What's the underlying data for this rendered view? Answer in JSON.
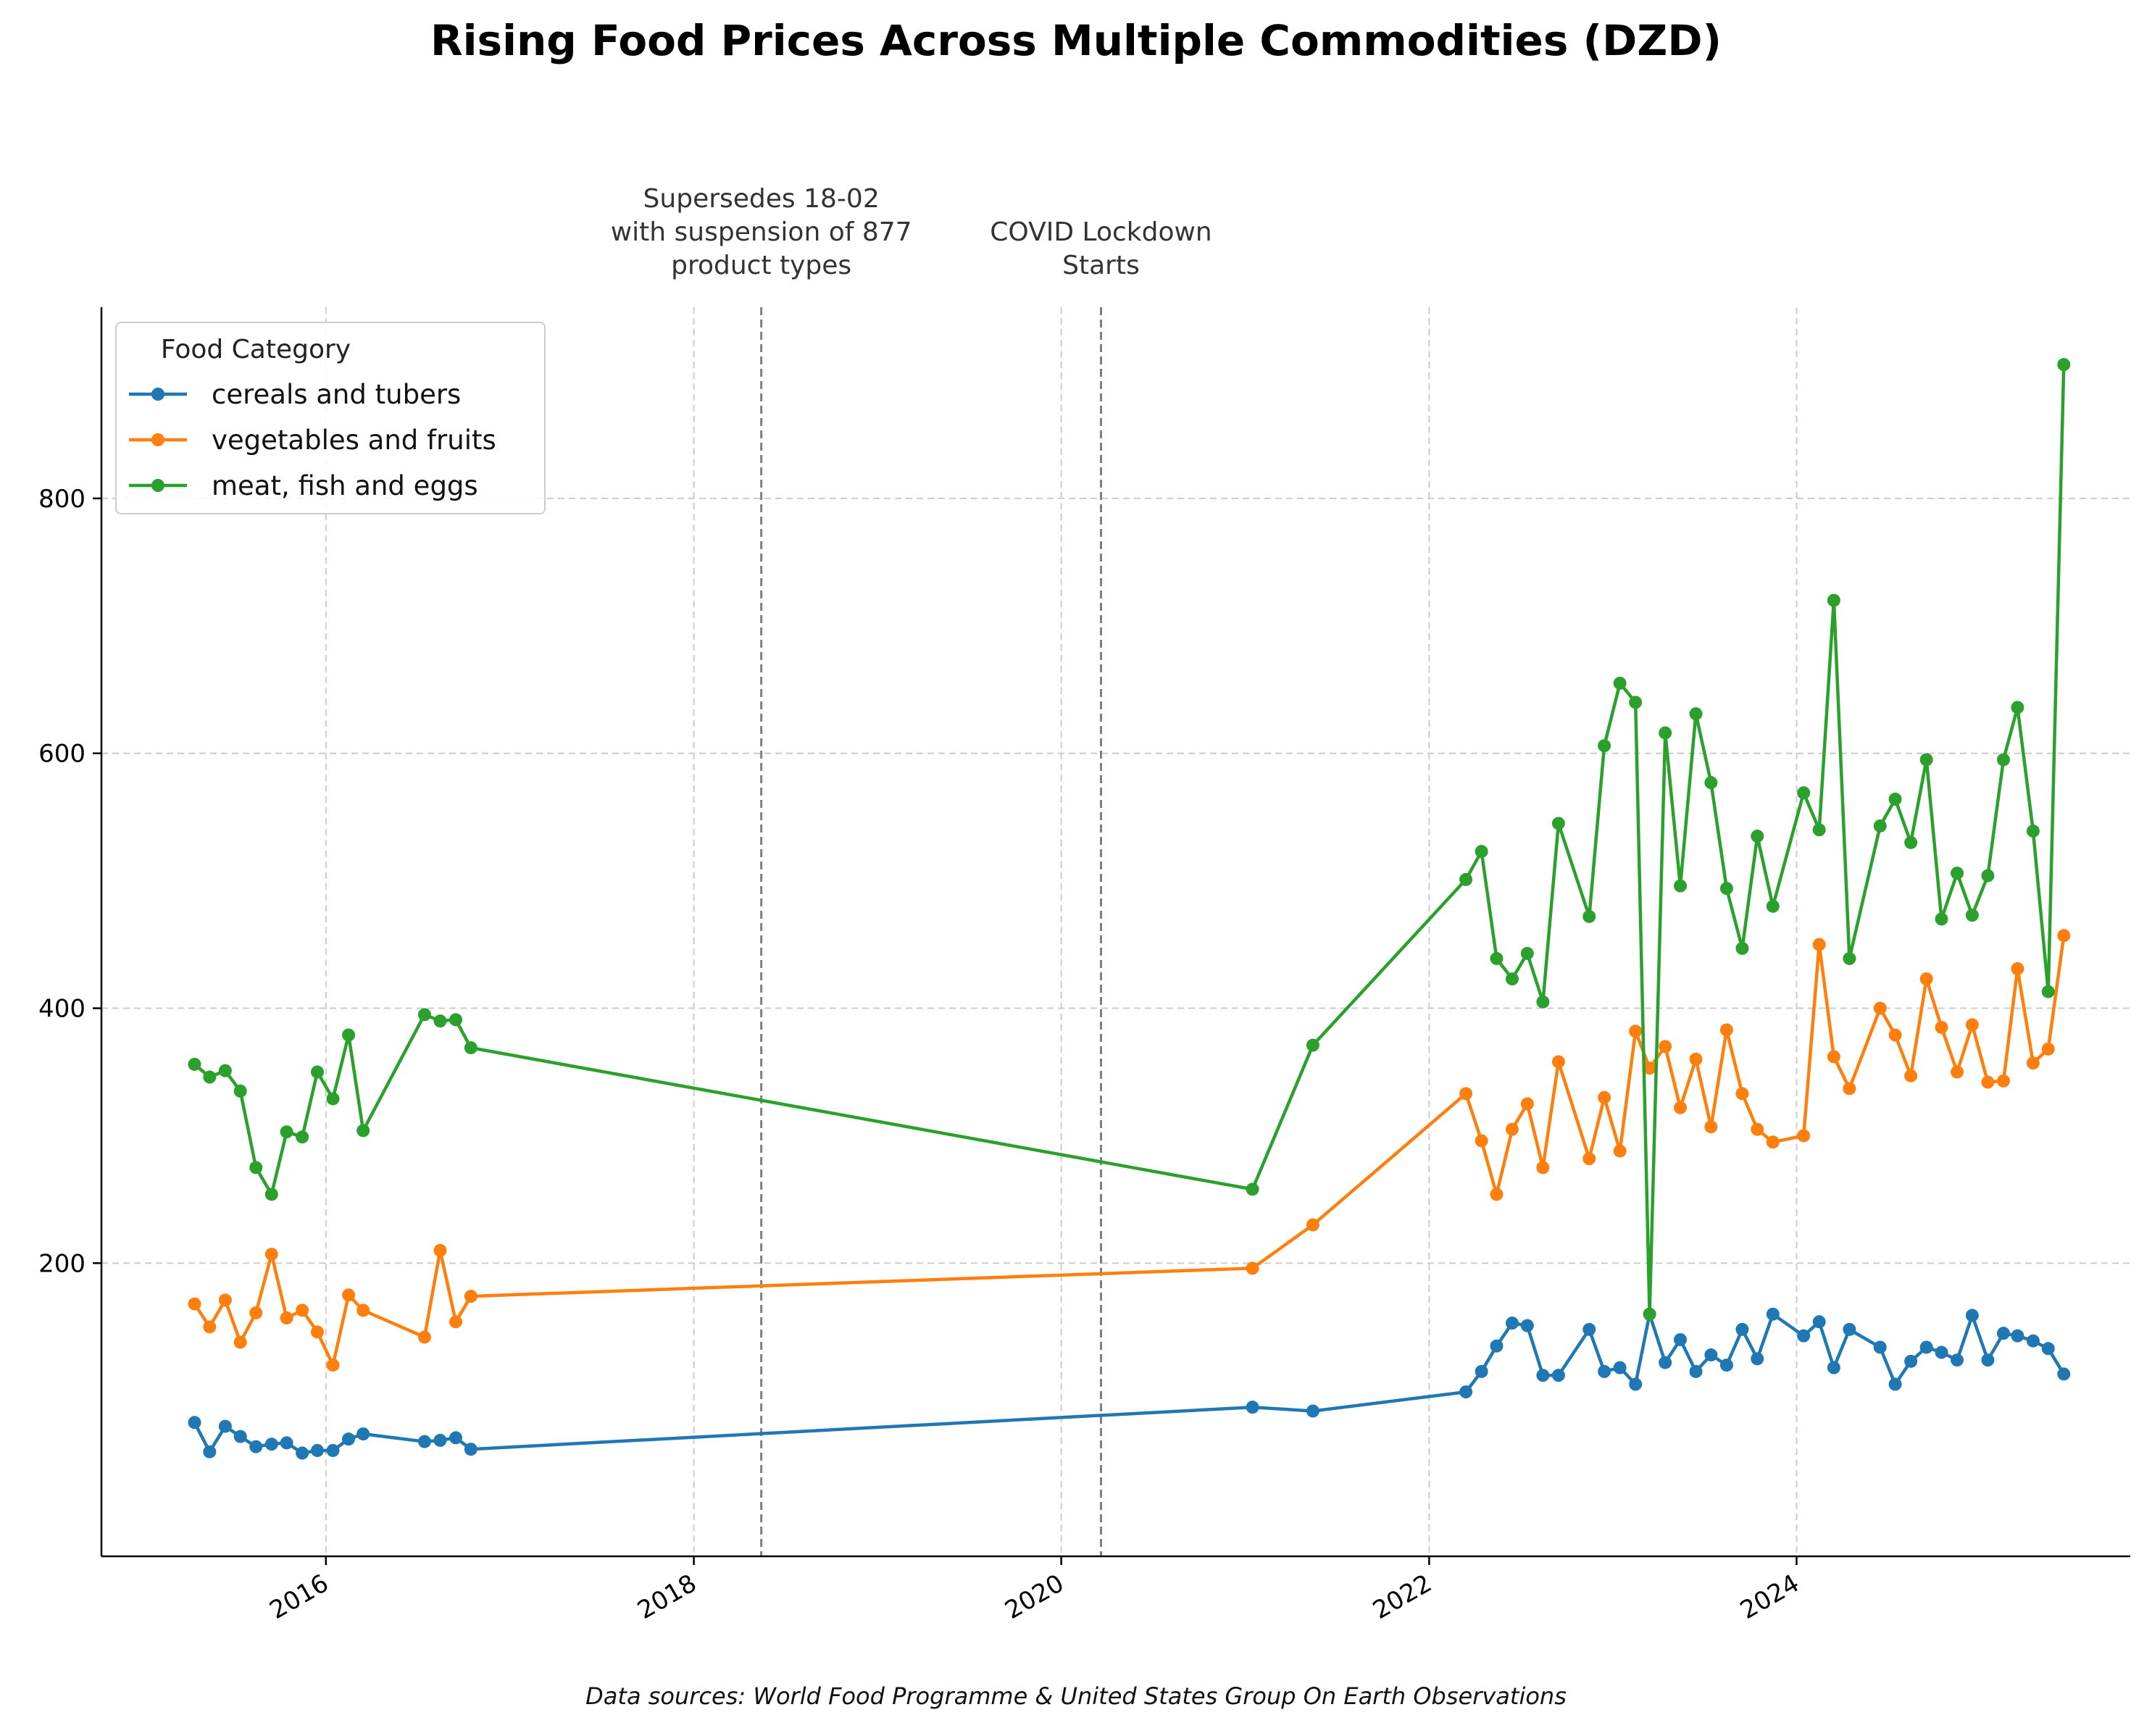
{
  "chart_data": {
    "type": "line",
    "title": "Rising Food Prices Across Multiple Commodities (DZD)",
    "footer": "Data sources: World Food Programme & United States Group On Earth Observations",
    "xlabel": "",
    "ylabel": "",
    "xlim": [
      "2014-10-12",
      "2025-10-25"
    ],
    "ylim": [
      -30,
      950
    ],
    "x_ticks": [
      {
        "date": "2016-01-01",
        "label": "2016"
      },
      {
        "date": "2018-01-01",
        "label": "2018"
      },
      {
        "date": "2020-01-01",
        "label": "2020"
      },
      {
        "date": "2022-01-01",
        "label": "2022"
      },
      {
        "date": "2024-01-01",
        "label": "2024"
      }
    ],
    "y_ticks": [
      200,
      400,
      600,
      800
    ],
    "grid": true,
    "legend": {
      "title": "Food Category",
      "placement": "top-left"
    },
    "annotations": [
      {
        "date": "2018-05-15",
        "label": [
          "Supersedes 18-02",
          "with suspension of 877",
          "product types"
        ]
      },
      {
        "date": "2020-03-20",
        "label": [
          "COVID Lockdown",
          "Starts"
        ]
      }
    ],
    "series": [
      {
        "name": "cereals and tubers",
        "color": "#1f77b4",
        "points": [
          [
            "2015-04-15",
            75
          ],
          [
            "2015-05-15",
            52
          ],
          [
            "2015-06-15",
            72
          ],
          [
            "2015-07-15",
            64
          ],
          [
            "2015-08-15",
            56
          ],
          [
            "2015-09-15",
            58
          ],
          [
            "2015-10-15",
            59
          ],
          [
            "2015-11-15",
            51
          ],
          [
            "2015-12-15",
            53
          ],
          [
            "2016-01-15",
            53
          ],
          [
            "2016-02-15",
            62
          ],
          [
            "2016-03-15",
            66
          ],
          [
            "2016-07-15",
            60
          ],
          [
            "2016-08-15",
            61
          ],
          [
            "2016-09-15",
            63
          ],
          [
            "2016-10-15",
            54
          ],
          [
            "2021-01-15",
            87
          ],
          [
            "2021-05-15",
            84
          ],
          [
            "2022-03-15",
            99
          ],
          [
            "2022-04-15",
            115
          ],
          [
            "2022-05-15",
            135
          ],
          [
            "2022-06-15",
            153
          ],
          [
            "2022-07-15",
            151
          ],
          [
            "2022-08-15",
            112
          ],
          [
            "2022-09-15",
            112
          ],
          [
            "2022-11-15",
            148
          ],
          [
            "2022-12-15",
            115
          ],
          [
            "2023-01-15",
            118
          ],
          [
            "2023-02-15",
            105
          ],
          [
            "2023-03-15",
            160
          ],
          [
            "2023-04-15",
            122
          ],
          [
            "2023-05-15",
            140
          ],
          [
            "2023-06-15",
            115
          ],
          [
            "2023-07-15",
            128
          ],
          [
            "2023-08-15",
            120
          ],
          [
            "2023-09-15",
            148
          ],
          [
            "2023-10-15",
            125
          ],
          [
            "2023-11-15",
            160
          ],
          [
            "2024-01-15",
            143
          ],
          [
            "2024-02-15",
            154
          ],
          [
            "2024-03-15",
            118
          ],
          [
            "2024-04-15",
            148
          ],
          [
            "2024-06-15",
            134
          ],
          [
            "2024-07-15",
            105
          ],
          [
            "2024-08-15",
            123
          ],
          [
            "2024-09-15",
            134
          ],
          [
            "2024-10-15",
            130
          ],
          [
            "2024-11-15",
            124
          ],
          [
            "2024-12-15",
            159
          ],
          [
            "2025-01-15",
            124
          ],
          [
            "2025-02-15",
            145
          ],
          [
            "2025-03-15",
            143
          ],
          [
            "2025-04-15",
            139
          ],
          [
            "2025-05-15",
            133
          ],
          [
            "2025-06-15",
            113
          ]
        ]
      },
      {
        "name": "vegetables and fruits",
        "color": "#ff7f0e",
        "points": [
          [
            "2015-04-15",
            168
          ],
          [
            "2015-05-15",
            150
          ],
          [
            "2015-06-15",
            171
          ],
          [
            "2015-07-15",
            138
          ],
          [
            "2015-08-15",
            161
          ],
          [
            "2015-09-15",
            207
          ],
          [
            "2015-10-15",
            157
          ],
          [
            "2015-11-15",
            163
          ],
          [
            "2015-12-15",
            146
          ],
          [
            "2016-01-15",
            120
          ],
          [
            "2016-02-15",
            175
          ],
          [
            "2016-03-15",
            163
          ],
          [
            "2016-07-15",
            142
          ],
          [
            "2016-08-15",
            210
          ],
          [
            "2016-09-15",
            154
          ],
          [
            "2016-10-15",
            174
          ],
          [
            "2021-01-15",
            196
          ],
          [
            "2021-05-15",
            230
          ],
          [
            "2022-03-15",
            333
          ],
          [
            "2022-04-15",
            296
          ],
          [
            "2022-05-15",
            254
          ],
          [
            "2022-06-15",
            305
          ],
          [
            "2022-07-15",
            325
          ],
          [
            "2022-08-15",
            275
          ],
          [
            "2022-09-15",
            358
          ],
          [
            "2022-11-15",
            282
          ],
          [
            "2022-12-15",
            330
          ],
          [
            "2023-01-15",
            288
          ],
          [
            "2023-02-15",
            382
          ],
          [
            "2023-03-15",
            353
          ],
          [
            "2023-04-15",
            370
          ],
          [
            "2023-05-15",
            322
          ],
          [
            "2023-06-15",
            360
          ],
          [
            "2023-07-15",
            307
          ],
          [
            "2023-08-15",
            383
          ],
          [
            "2023-09-15",
            333
          ],
          [
            "2023-10-15",
            305
          ],
          [
            "2023-11-15",
            295
          ],
          [
            "2024-01-15",
            300
          ],
          [
            "2024-02-15",
            450
          ],
          [
            "2024-03-15",
            362
          ],
          [
            "2024-04-15",
            337
          ],
          [
            "2024-06-15",
            400
          ],
          [
            "2024-07-15",
            379
          ],
          [
            "2024-08-15",
            347
          ],
          [
            "2024-09-15",
            423
          ],
          [
            "2024-10-15",
            385
          ],
          [
            "2024-11-15",
            350
          ],
          [
            "2024-12-15",
            387
          ],
          [
            "2025-01-15",
            342
          ],
          [
            "2025-02-15",
            343
          ],
          [
            "2025-03-15",
            431
          ],
          [
            "2025-04-15",
            357
          ],
          [
            "2025-05-15",
            368
          ],
          [
            "2025-06-15",
            457
          ]
        ]
      },
      {
        "name": "meat, fish and eggs",
        "color": "#2ca02c",
        "points": [
          [
            "2015-04-15",
            356
          ],
          [
            "2015-05-15",
            346
          ],
          [
            "2015-06-15",
            351
          ],
          [
            "2015-07-15",
            335
          ],
          [
            "2015-08-15",
            275
          ],
          [
            "2015-09-15",
            254
          ],
          [
            "2015-10-15",
            303
          ],
          [
            "2015-11-15",
            299
          ],
          [
            "2015-12-15",
            350
          ],
          [
            "2016-01-15",
            329
          ],
          [
            "2016-02-15",
            379
          ],
          [
            "2016-03-15",
            304
          ],
          [
            "2016-07-15",
            395
          ],
          [
            "2016-08-15",
            390
          ],
          [
            "2016-09-15",
            391
          ],
          [
            "2016-10-15",
            369
          ],
          [
            "2021-01-15",
            258
          ],
          [
            "2021-05-15",
            371
          ],
          [
            "2022-03-15",
            501
          ],
          [
            "2022-04-15",
            523
          ],
          [
            "2022-05-15",
            439
          ],
          [
            "2022-06-15",
            423
          ],
          [
            "2022-07-15",
            443
          ],
          [
            "2022-08-15",
            405
          ],
          [
            "2022-09-15",
            545
          ],
          [
            "2022-11-15",
            472
          ],
          [
            "2022-12-15",
            606
          ],
          [
            "2023-01-15",
            655
          ],
          [
            "2023-02-15",
            640
          ],
          [
            "2023-03-15",
            160
          ],
          [
            "2023-04-15",
            616
          ],
          [
            "2023-05-15",
            496
          ],
          [
            "2023-06-15",
            631
          ],
          [
            "2023-07-15",
            577
          ],
          [
            "2023-08-15",
            494
          ],
          [
            "2023-09-15",
            447
          ],
          [
            "2023-10-15",
            535
          ],
          [
            "2023-11-15",
            480
          ],
          [
            "2024-01-15",
            569
          ],
          [
            "2024-02-15",
            540
          ],
          [
            "2024-03-15",
            720
          ],
          [
            "2024-04-15",
            439
          ],
          [
            "2024-06-15",
            543
          ],
          [
            "2024-07-15",
            564
          ],
          [
            "2024-08-15",
            530
          ],
          [
            "2024-09-15",
            595
          ],
          [
            "2024-10-15",
            470
          ],
          [
            "2024-11-15",
            506
          ],
          [
            "2024-12-15",
            473
          ],
          [
            "2025-01-15",
            504
          ],
          [
            "2025-02-15",
            595
          ],
          [
            "2025-03-15",
            636
          ],
          [
            "2025-04-15",
            539
          ],
          [
            "2025-05-15",
            413
          ],
          [
            "2025-06-15",
            905
          ]
        ]
      }
    ]
  }
}
